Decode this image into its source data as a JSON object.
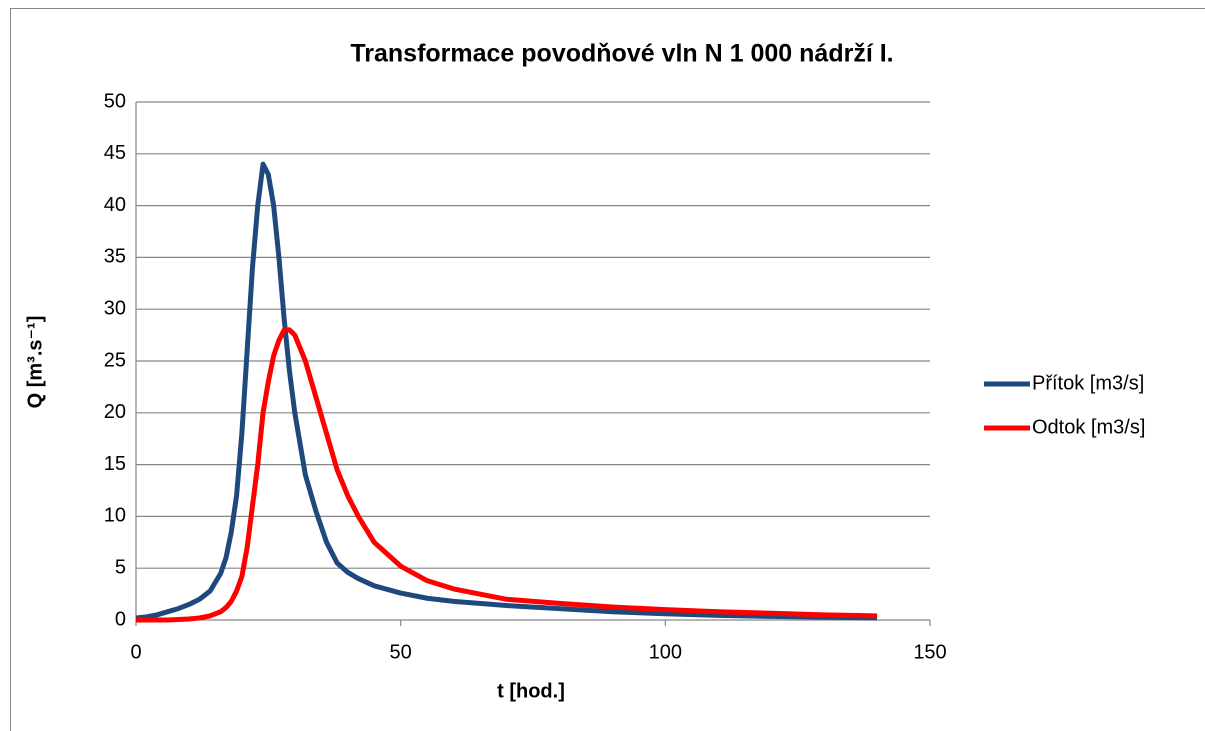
{
  "chart_data": {
    "type": "line",
    "title": "Transformace povodňové vln N 1 000 nádrží I.",
    "x_label": "t [hod.]",
    "y_label": "Q [m³.s⁻¹]",
    "x": [
      0,
      2,
      4,
      6,
      8,
      10,
      12,
      14,
      16,
      17,
      18,
      19,
      20,
      21,
      22,
      23,
      24,
      25,
      26,
      27,
      28,
      29,
      30,
      32,
      34,
      36,
      38,
      40,
      42,
      45,
      50,
      55,
      60,
      70,
      80,
      90,
      100,
      110,
      120,
      130,
      140
    ],
    "series": [
      {
        "name": "Přítok [m3/s]",
        "color": "#1f497d",
        "values": [
          0.2,
          0.3,
          0.5,
          0.8,
          1.1,
          1.5,
          2,
          2.8,
          4.5,
          6,
          8.5,
          12,
          18,
          26,
          34,
          40,
          44,
          43,
          40,
          35,
          29,
          24,
          20,
          14,
          10.5,
          7.5,
          5.5,
          4.6,
          4,
          3.3,
          2.6,
          2.1,
          1.8,
          1.4,
          1.1,
          0.8,
          0.6,
          0.45,
          0.35,
          0.28,
          0.2
        ]
      },
      {
        "name": "Odtok [m3/s]",
        "color": "#ff0000",
        "values": [
          0,
          0,
          0,
          0,
          0.05,
          0.1,
          0.2,
          0.4,
          0.8,
          1.2,
          1.8,
          2.8,
          4.2,
          7,
          11,
          15,
          20,
          23,
          25.5,
          27,
          28,
          28,
          27.5,
          25,
          21.5,
          18,
          14.5,
          12,
          10,
          7.5,
          5.2,
          3.8,
          3,
          2,
          1.6,
          1.25,
          1,
          0.8,
          0.65,
          0.5,
          0.4
        ]
      }
    ],
    "xlim": [
      0,
      150
    ],
    "xticks": [
      0,
      50,
      100,
      150
    ],
    "ylim": [
      0,
      50
    ],
    "yticks": [
      0,
      5,
      10,
      15,
      20,
      25,
      30,
      35,
      40,
      45,
      50
    ],
    "grid": true,
    "legend": "right"
  }
}
